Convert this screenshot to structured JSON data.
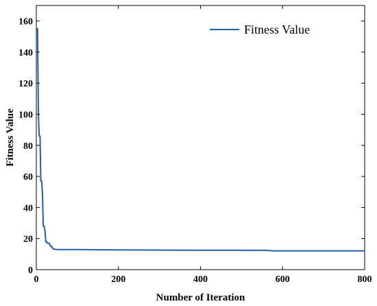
{
  "chart_data": {
    "type": "line",
    "title": "",
    "xlabel": "Number of Iteration",
    "ylabel": "Fitness Value",
    "xlim": [
      0,
      800
    ],
    "ylim": [
      0,
      170
    ],
    "xticks": [
      0,
      200,
      400,
      600,
      800
    ],
    "yticks": [
      0,
      20,
      40,
      60,
      80,
      100,
      120,
      140,
      160
    ],
    "xtick_labels": [
      "0",
      "200",
      "400",
      "600",
      "800"
    ],
    "ytick_labels": [
      "0",
      "20",
      "40",
      "60",
      "80",
      "100",
      "120",
      "140",
      "160"
    ],
    "grid": false,
    "legend": {
      "position": "top-right",
      "entries": [
        "Fitness Value"
      ]
    },
    "series": [
      {
        "name": "Fitness Value",
        "color": "#1f5fa8",
        "x": [
          1,
          3,
          5,
          7,
          9,
          11,
          13,
          15,
          17,
          19,
          21,
          23,
          25,
          27,
          29,
          31,
          33,
          35,
          37,
          39,
          41,
          43,
          45,
          50,
          70,
          100,
          150,
          200,
          300,
          400,
          500,
          560,
          570,
          580,
          600,
          700,
          800
        ],
        "y": [
          155,
          155,
          100,
          86,
          86,
          57,
          57,
          48,
          28,
          28,
          25,
          18,
          18,
          17,
          17,
          17,
          16,
          15,
          15,
          14,
          13.5,
          13.2,
          13.1,
          13.0,
          12.9,
          12.9,
          12.8,
          12.7,
          12.6,
          12.5,
          12.5,
          12.4,
          12.2,
          12.1,
          12.1,
          12.1,
          12.1
        ]
      }
    ]
  }
}
